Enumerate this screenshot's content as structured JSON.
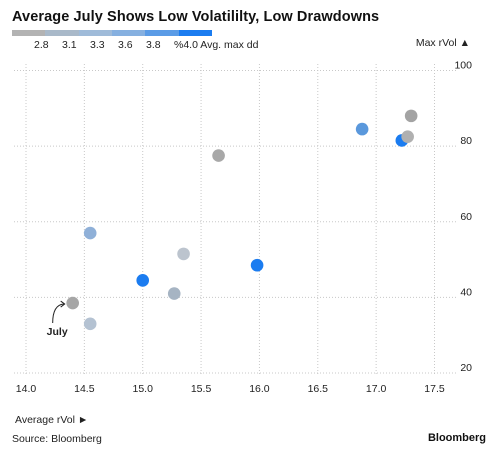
{
  "chart_data": {
    "type": "scatter",
    "title": "Average July Shows Low Volatililty, Low Drawdowns",
    "xlabel": "Average rVol ►",
    "ylabel": "Max rVol ▲",
    "xlim": [
      14.0,
      17.75
    ],
    "ylim": [
      15,
      100
    ],
    "xticks": [
      "14.0",
      "14.5",
      "15.0",
      "15.5",
      "16.0",
      "16.5",
      "17.0",
      "17.5"
    ],
    "yticks": [
      "20",
      "40",
      "60",
      "80",
      "100"
    ],
    "color_legend": {
      "labels": [
        "2.8",
        "3.1",
        "3.3",
        "3.6",
        "3.8",
        "%4.0 Avg. max dd"
      ],
      "colors": [
        "#b3b3b3",
        "#a9b9c9",
        "#9fbbd9",
        "#86b0e0",
        "#5a9be6",
        "#1b7cf0"
      ]
    },
    "points": [
      {
        "x": 14.4,
        "y": 38.5,
        "color": "#a6a6a6"
      },
      {
        "x": 14.55,
        "y": 33,
        "color": "#b4c2d2"
      },
      {
        "x": 14.55,
        "y": 57,
        "color": "#8fb0d8"
      },
      {
        "x": 15.0,
        "y": 44.5,
        "color": "#1b7cf0"
      },
      {
        "x": 15.27,
        "y": 41,
        "color": "#a6b4c3"
      },
      {
        "x": 15.35,
        "y": 51.5,
        "color": "#bcc4ce"
      },
      {
        "x": 15.65,
        "y": 77.5,
        "color": "#a8a8a8"
      },
      {
        "x": 15.98,
        "y": 48.5,
        "color": "#1b7cf0"
      },
      {
        "x": 16.88,
        "y": 84.5,
        "color": "#5a98dc"
      },
      {
        "x": 17.22,
        "y": 81.5,
        "color": "#1b7cf0"
      },
      {
        "x": 17.27,
        "y": 82.5,
        "color": "#b0b0b0"
      },
      {
        "x": 17.3,
        "y": 88,
        "color": "#a3a3a3"
      }
    ],
    "annotations": [
      {
        "text": "July",
        "x": 14.4,
        "y": 38.5
      }
    ],
    "grid": true
  }
}
